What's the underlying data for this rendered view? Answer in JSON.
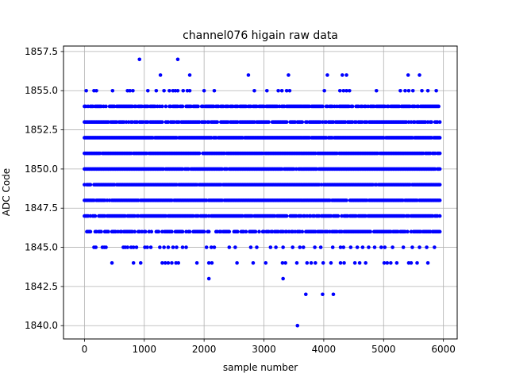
{
  "chart_data": {
    "type": "scatter",
    "title": "channel076 higain raw data",
    "xlabel": "sample number",
    "ylabel": "ADC Code",
    "xlim": [
      -350,
      6230
    ],
    "ylim": [
      1839.15,
      1857.85
    ],
    "xticks": [
      0,
      1000,
      2000,
      3000,
      4000,
      5000,
      6000
    ],
    "xtick_labels": [
      "0",
      "1000",
      "2000",
      "3000",
      "4000",
      "5000",
      "6000"
    ],
    "yticks": [
      1840.0,
      1842.5,
      1845.0,
      1847.5,
      1850.0,
      1852.5,
      1855.0,
      1857.5
    ],
    "ytick_labels": [
      "1840.0",
      "1842.5",
      "1845.0",
      "1847.5",
      "1850.0",
      "1852.5",
      "1855.0",
      "1857.5"
    ],
    "grid": true,
    "marker_color": "#0000ff",
    "sample_range": [
      0,
      5940
    ],
    "dense_levels": [
      1846,
      1847,
      1848,
      1849,
      1850,
      1851,
      1852,
      1853,
      1854
    ],
    "sparse_levels": [
      {
        "y": 1845,
        "x": [
          160,
          190,
          300,
          330,
          360,
          650,
          680,
          720,
          780,
          820,
          870,
          1010,
          1050,
          1110,
          1260,
          1330,
          1400,
          1480,
          1540,
          1640,
          1700,
          2040,
          2120,
          2170,
          2420,
          2520,
          2780,
          2880,
          3110,
          3200,
          3320,
          3480,
          3600,
          3660,
          3850,
          3950,
          4150,
          4280,
          4330,
          4450,
          4560,
          4650,
          4750,
          4850,
          4960,
          5020,
          5150,
          5330,
          5480,
          5600,
          5720,
          5850
        ]
      },
      {
        "y": 1844,
        "x": [
          460,
          820,
          940,
          1300,
          1350,
          1400,
          1460,
          1530,
          1570,
          1880,
          2080,
          2130,
          2550,
          2820,
          3030,
          3310,
          3360,
          3550,
          3720,
          3790,
          3860,
          3990,
          4120,
          4280,
          4340,
          4520,
          4600,
          4700,
          5010,
          5060,
          5120,
          5220,
          5420,
          5460,
          5560,
          5740
        ]
      },
      {
        "y": 1843,
        "x": [
          2080,
          3320
        ]
      },
      {
        "y": 1842,
        "x": [
          3700,
          3980,
          4160
        ]
      },
      {
        "y": 1840,
        "x": [
          3560
        ]
      },
      {
        "y": 1855,
        "x": [
          30,
          160,
          200,
          470,
          720,
          760,
          810,
          1060,
          1200,
          1330,
          1420,
          1480,
          1520,
          1560,
          1650,
          1720,
          1760,
          2000,
          2170,
          2840,
          3050,
          3240,
          3300,
          3380,
          3430,
          4010,
          4270,
          4330,
          4380,
          4430,
          4880,
          5280,
          5360,
          5420,
          5490,
          5640,
          5740,
          5880
        ]
      },
      {
        "y": 1856,
        "x": [
          1270,
          1760,
          2740,
          3410,
          4060,
          4310,
          4380,
          5410,
          5600
        ]
      },
      {
        "y": 1857,
        "x": [
          920,
          1560
        ]
      }
    ]
  }
}
